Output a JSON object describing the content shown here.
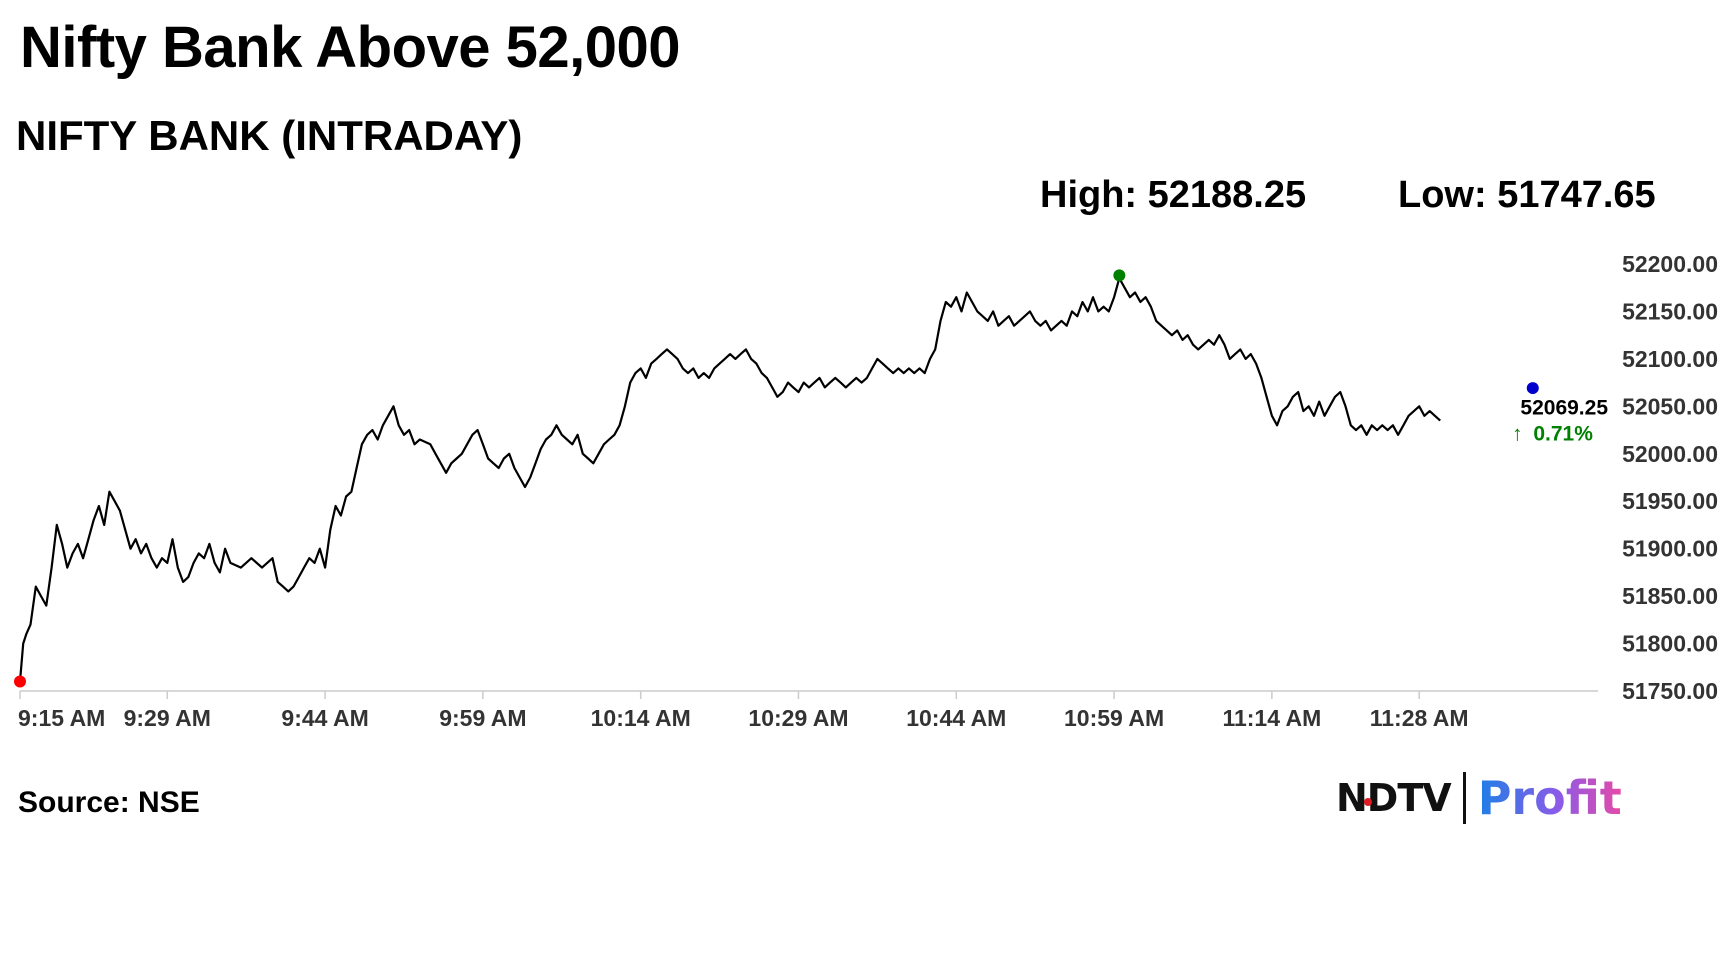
{
  "headline": "Nifty Bank Above 52,000",
  "chart_data": {
    "type": "line",
    "title": "NIFTY BANK (INTRADAY)",
    "high_label": "High: 52188.25",
    "low_label": "Low: 51747.65",
    "x_ticks": [
      "9:15 AM",
      "9:29 AM",
      "9:44 AM",
      "9:59 AM",
      "10:14 AM",
      "10:29 AM",
      "10:44 AM",
      "10:59 AM",
      "11:14 AM",
      "11:28 AM"
    ],
    "x_tick_minutes": [
      0,
      14,
      29,
      44,
      59,
      74,
      89,
      104,
      119,
      133
    ],
    "x_range_minutes": [
      0,
      150
    ],
    "y_ticks": [
      "52200.00",
      "52150.00",
      "52100.00",
      "52050.00",
      "52000.00",
      "51950.00",
      "51900.00",
      "51850.00",
      "51800.00",
      "51750.00"
    ],
    "ylim": [
      51750,
      52200
    ],
    "series": [
      {
        "points": [
          [
            0,
            51760
          ],
          [
            0.3,
            51800
          ],
          [
            0.6,
            51810
          ],
          [
            1,
            51820
          ],
          [
            1.5,
            51860
          ],
          [
            2,
            51850
          ],
          [
            2.5,
            51840
          ],
          [
            3,
            51880
          ],
          [
            3.5,
            51925
          ],
          [
            4,
            51905
          ],
          [
            4.5,
            51880
          ],
          [
            5,
            51895
          ],
          [
            5.5,
            51905
          ],
          [
            6,
            51890
          ],
          [
            6.5,
            51910
          ],
          [
            7,
            51930
          ],
          [
            7.5,
            51945
          ],
          [
            8,
            51925
          ],
          [
            8.5,
            51960
          ],
          [
            9,
            51950
          ],
          [
            9.5,
            51940
          ],
          [
            10,
            51920
          ],
          [
            10.5,
            51900
          ],
          [
            11,
            51910
          ],
          [
            11.5,
            51895
          ],
          [
            12,
            51905
          ],
          [
            12.5,
            51890
          ],
          [
            13,
            51880
          ],
          [
            13.5,
            51890
          ],
          [
            14,
            51885
          ],
          [
            14.5,
            51910
          ],
          [
            15,
            51880
          ],
          [
            15.5,
            51865
          ],
          [
            16,
            51870
          ],
          [
            16.5,
            51885
          ],
          [
            17,
            51895
          ],
          [
            17.5,
            51890
          ],
          [
            18,
            51905
          ],
          [
            18.5,
            51885
          ],
          [
            19,
            51875
          ],
          [
            19.5,
            51900
          ],
          [
            20,
            51885
          ],
          [
            21,
            51880
          ],
          [
            22,
            51890
          ],
          [
            23,
            51880
          ],
          [
            24,
            51890
          ],
          [
            24.5,
            51865
          ],
          [
            25,
            51860
          ],
          [
            25.5,
            51855
          ],
          [
            26,
            51860
          ],
          [
            26.5,
            51870
          ],
          [
            27,
            51880
          ],
          [
            27.5,
            51890
          ],
          [
            28,
            51885
          ],
          [
            28.5,
            51900
          ],
          [
            29,
            51880
          ],
          [
            29.5,
            51920
          ],
          [
            30,
            51945
          ],
          [
            30.5,
            51935
          ],
          [
            31,
            51955
          ],
          [
            31.5,
            51960
          ],
          [
            32,
            51985
          ],
          [
            32.5,
            52010
          ],
          [
            33,
            52020
          ],
          [
            33.5,
            52025
          ],
          [
            34,
            52015
          ],
          [
            34.5,
            52030
          ],
          [
            35,
            52040
          ],
          [
            35.5,
            52050
          ],
          [
            36,
            52030
          ],
          [
            36.5,
            52020
          ],
          [
            37,
            52025
          ],
          [
            37.5,
            52010
          ],
          [
            38,
            52015
          ],
          [
            39,
            52010
          ],
          [
            39.5,
            52000
          ],
          [
            40,
            51990
          ],
          [
            40.5,
            51980
          ],
          [
            41,
            51990
          ],
          [
            41.5,
            51995
          ],
          [
            42,
            52000
          ],
          [
            42.5,
            52010
          ],
          [
            43,
            52020
          ],
          [
            43.5,
            52025
          ],
          [
            44,
            52010
          ],
          [
            44.5,
            51995
          ],
          [
            45,
            51990
          ],
          [
            45.5,
            51985
          ],
          [
            46,
            51995
          ],
          [
            46.5,
            52000
          ],
          [
            47,
            51985
          ],
          [
            47.5,
            51975
          ],
          [
            48,
            51965
          ],
          [
            48.5,
            51975
          ],
          [
            49,
            51990
          ],
          [
            49.5,
            52005
          ],
          [
            50,
            52015
          ],
          [
            50.5,
            52020
          ],
          [
            51,
            52030
          ],
          [
            51.5,
            52020
          ],
          [
            52,
            52015
          ],
          [
            52.5,
            52010
          ],
          [
            53,
            52020
          ],
          [
            53.5,
            52000
          ],
          [
            54,
            51995
          ],
          [
            54.5,
            51990
          ],
          [
            55,
            52000
          ],
          [
            55.5,
            52010
          ],
          [
            56,
            52015
          ],
          [
            56.5,
            52020
          ],
          [
            57,
            52030
          ],
          [
            57.5,
            52050
          ],
          [
            58,
            52075
          ],
          [
            58.5,
            52085
          ],
          [
            59,
            52090
          ],
          [
            59.5,
            52080
          ],
          [
            60,
            52095
          ],
          [
            60.5,
            52100
          ],
          [
            61,
            52105
          ],
          [
            61.5,
            52110
          ],
          [
            62,
            52105
          ],
          [
            62.5,
            52100
          ],
          [
            63,
            52090
          ],
          [
            63.5,
            52085
          ],
          [
            64,
            52090
          ],
          [
            64.5,
            52080
          ],
          [
            65,
            52085
          ],
          [
            65.5,
            52080
          ],
          [
            66,
            52090
          ],
          [
            66.5,
            52095
          ],
          [
            67,
            52100
          ],
          [
            67.5,
            52105
          ],
          [
            68,
            52100
          ],
          [
            68.5,
            52105
          ],
          [
            69,
            52110
          ],
          [
            69.5,
            52100
          ],
          [
            70,
            52095
          ],
          [
            70.5,
            52085
          ],
          [
            71,
            52080
          ],
          [
            71.5,
            52070
          ],
          [
            72,
            52060
          ],
          [
            72.5,
            52065
          ],
          [
            73,
            52075
          ],
          [
            73.5,
            52070
          ],
          [
            74,
            52065
          ],
          [
            74.5,
            52075
          ],
          [
            75,
            52070
          ],
          [
            75.5,
            52075
          ],
          [
            76,
            52080
          ],
          [
            76.5,
            52070
          ],
          [
            77,
            52075
          ],
          [
            77.5,
            52080
          ],
          [
            78,
            52075
          ],
          [
            78.5,
            52070
          ],
          [
            79,
            52075
          ],
          [
            79.5,
            52080
          ],
          [
            80,
            52075
          ],
          [
            80.5,
            52080
          ],
          [
            81,
            52090
          ],
          [
            81.5,
            52100
          ],
          [
            82,
            52095
          ],
          [
            82.5,
            52090
          ],
          [
            83,
            52085
          ],
          [
            83.5,
            52090
          ],
          [
            84,
            52085
          ],
          [
            84.5,
            52090
          ],
          [
            85,
            52085
          ],
          [
            85.5,
            52090
          ],
          [
            86,
            52085
          ],
          [
            86.5,
            52100
          ],
          [
            87,
            52110
          ],
          [
            87.5,
            52140
          ],
          [
            88,
            52160
          ],
          [
            88.5,
            52155
          ],
          [
            89,
            52165
          ],
          [
            89.5,
            52150
          ],
          [
            90,
            52170
          ],
          [
            90.5,
            52160
          ],
          [
            91,
            52150
          ],
          [
            91.5,
            52145
          ],
          [
            92,
            52140
          ],
          [
            92.5,
            52150
          ],
          [
            93,
            52135
          ],
          [
            93.5,
            52140
          ],
          [
            94,
            52145
          ],
          [
            94.5,
            52135
          ],
          [
            95,
            52140
          ],
          [
            95.5,
            52145
          ],
          [
            96,
            52150
          ],
          [
            96.5,
            52140
          ],
          [
            97,
            52135
          ],
          [
            97.5,
            52140
          ],
          [
            98,
            52130
          ],
          [
            98.5,
            52135
          ],
          [
            99,
            52140
          ],
          [
            99.5,
            52135
          ],
          [
            100,
            52150
          ],
          [
            100.5,
            52145
          ],
          [
            101,
            52160
          ],
          [
            101.5,
            52150
          ],
          [
            102,
            52165
          ],
          [
            102.5,
            52150
          ],
          [
            103,
            52155
          ],
          [
            103.5,
            52150
          ],
          [
            104,
            52165
          ],
          [
            104.5,
            52185
          ],
          [
            105,
            52175
          ],
          [
            105.5,
            52165
          ],
          [
            106,
            52170
          ],
          [
            106.5,
            52160
          ],
          [
            107,
            52165
          ],
          [
            107.5,
            52155
          ],
          [
            108,
            52140
          ],
          [
            108.5,
            52135
          ],
          [
            109,
            52130
          ],
          [
            109.5,
            52125
          ],
          [
            110,
            52130
          ],
          [
            110.5,
            52120
          ],
          [
            111,
            52125
          ],
          [
            111.5,
            52115
          ],
          [
            112,
            52110
          ],
          [
            112.5,
            52115
          ],
          [
            113,
            52120
          ],
          [
            113.5,
            52115
          ],
          [
            114,
            52125
          ],
          [
            114.5,
            52115
          ],
          [
            115,
            52100
          ],
          [
            115.5,
            52105
          ],
          [
            116,
            52110
          ],
          [
            116.5,
            52100
          ],
          [
            117,
            52105
          ],
          [
            117.5,
            52095
          ],
          [
            118,
            52080
          ],
          [
            118.5,
            52060
          ],
          [
            119,
            52040
          ],
          [
            119.5,
            52030
          ],
          [
            120,
            52045
          ],
          [
            120.5,
            52050
          ],
          [
            121,
            52060
          ],
          [
            121.5,
            52065
          ],
          [
            122,
            52045
          ],
          [
            122.5,
            52050
          ],
          [
            123,
            52040
          ],
          [
            123.5,
            52055
          ],
          [
            124,
            52040
          ],
          [
            124.5,
            52050
          ],
          [
            125,
            52060
          ],
          [
            125.5,
            52065
          ],
          [
            126,
            52050
          ],
          [
            126.5,
            52030
          ],
          [
            127,
            52025
          ],
          [
            127.5,
            52030
          ],
          [
            128,
            52020
          ],
          [
            128.5,
            52030
          ],
          [
            129,
            52025
          ],
          [
            129.5,
            52030
          ],
          [
            130,
            52025
          ],
          [
            130.5,
            52030
          ],
          [
            131,
            52020
          ],
          [
            131.5,
            52030
          ],
          [
            132,
            52040
          ],
          [
            132.5,
            52045
          ],
          [
            133,
            52050
          ],
          [
            133.5,
            52040
          ],
          [
            134,
            52045
          ],
          [
            134.5,
            52040
          ],
          [
            135,
            52035
          ]
        ]
      }
    ],
    "markers": [
      {
        "name": "low",
        "t": 0,
        "value": 51760,
        "color": "#ff0000"
      },
      {
        "name": "high",
        "t": 104.5,
        "value": 52188,
        "color": "#008000"
      },
      {
        "name": "last",
        "t": 143.8,
        "value": 52069.25,
        "color": "#0000cc"
      }
    ],
    "last_value": "52069.25",
    "change_arrow": "↑",
    "change_text": "0.71%",
    "change_color": "#008000",
    "line_color": "#000000",
    "source": "Source: NSE"
  },
  "logo": {
    "left": "NDTV",
    "right": "Profit"
  }
}
